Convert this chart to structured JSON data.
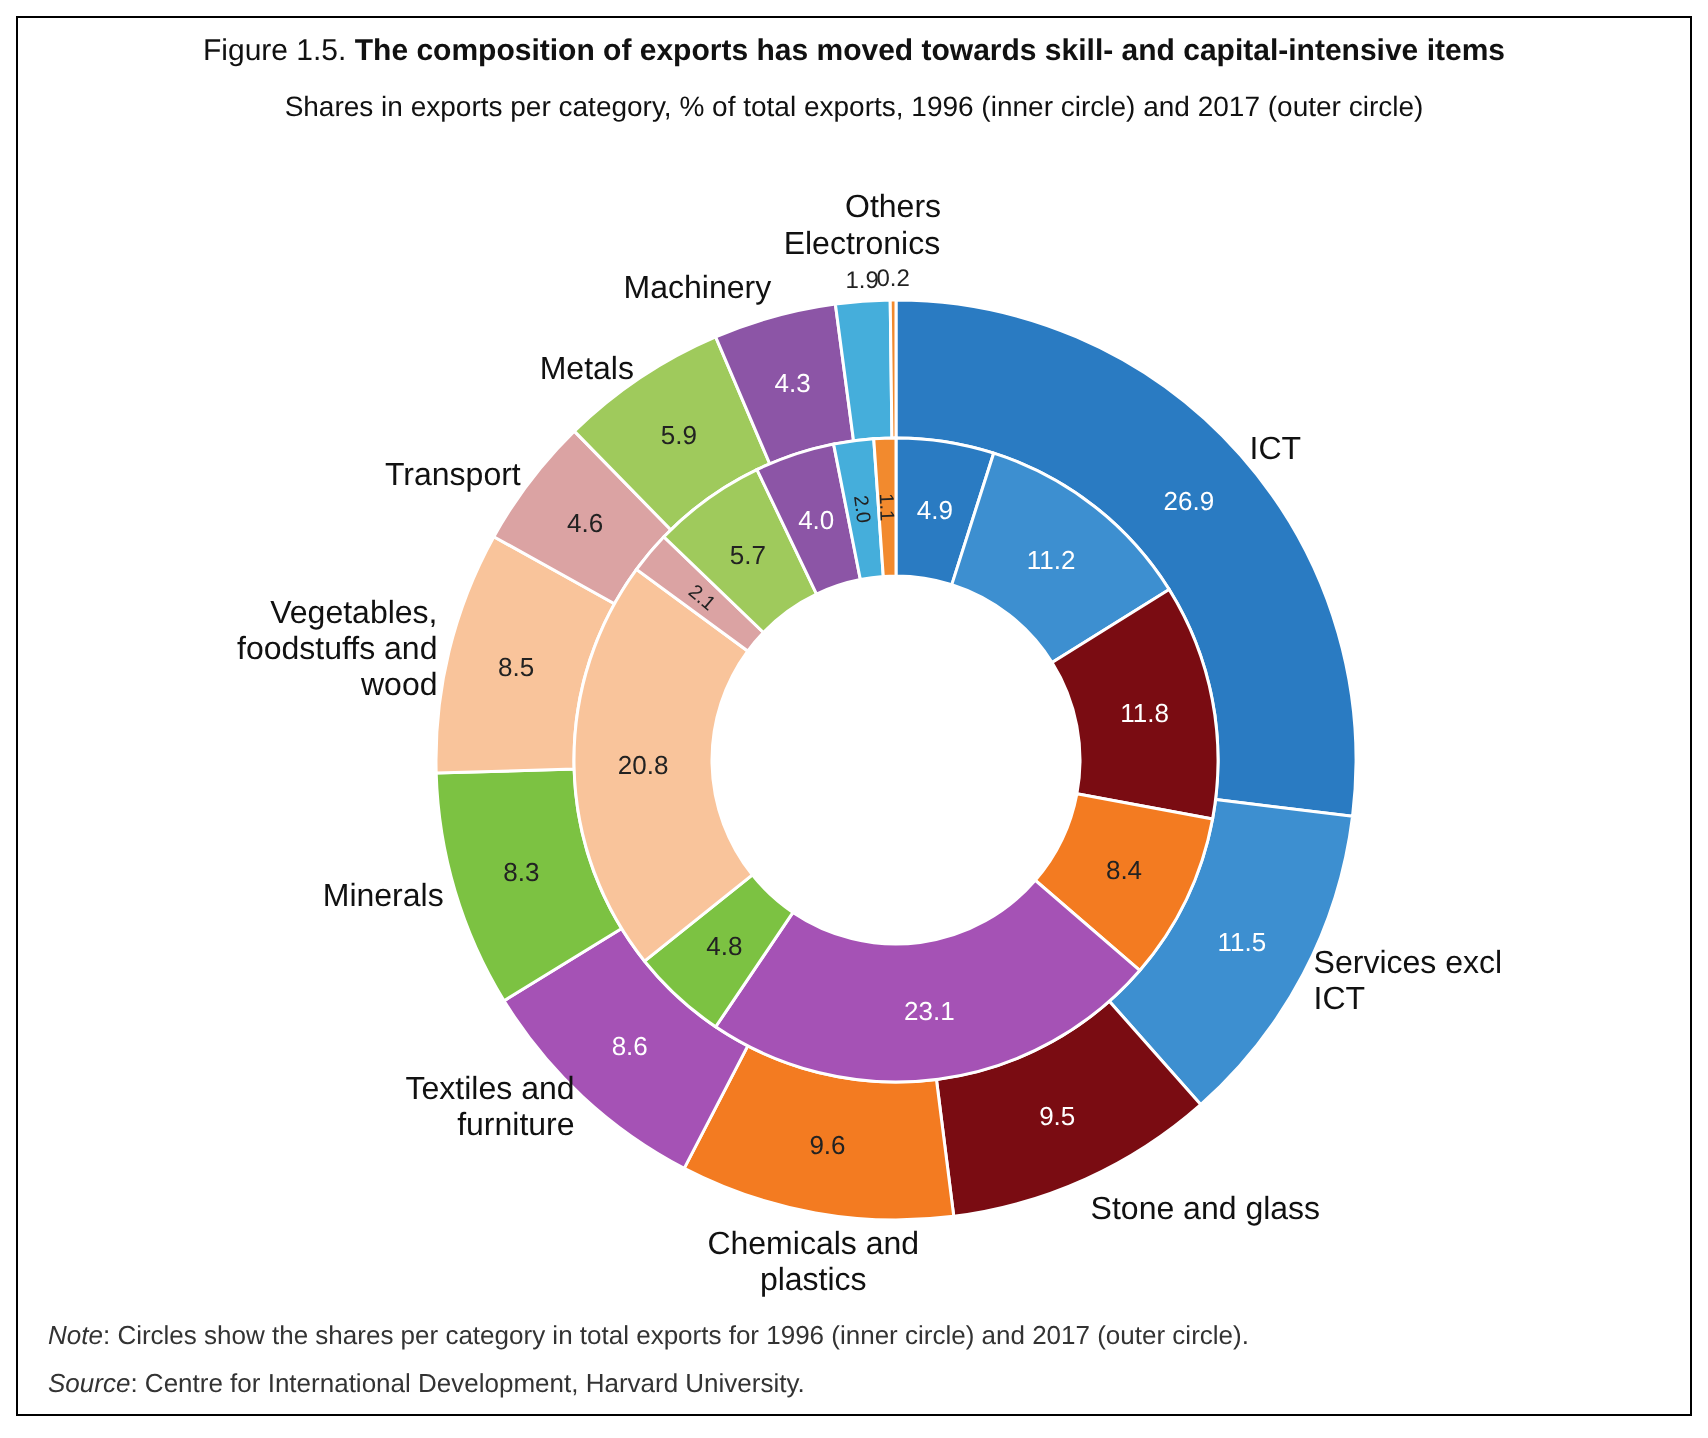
{
  "chart_data": {
    "type": "donut",
    "title": "Figure 1.5. The composition of exports has moved towards skill- and capital-intensive items",
    "subtitle": "Shares in exports per category, % of total exports, 1996 (inner circle) and 2017 (outer circle)",
    "categories": [
      "ICT",
      "Services excl ICT",
      "Stone and glass",
      "Chemicals and plastics",
      "Textiles and furniture",
      "Minerals",
      "Vegetables, foodstuffs and wood",
      "Transport",
      "Metals",
      "Machinery",
      "Electronics",
      "Others"
    ],
    "colors": [
      "#2a7bc2",
      "#3d8fd0",
      "#7a0c12",
      "#f37b21",
      "#a552b5",
      "#7cc242",
      "#f9c49b",
      "#dba3a3",
      "#9fca5c",
      "#8c55a6",
      "#45aedb",
      "#f28a2e"
    ],
    "series": [
      {
        "values": [
          26.9,
          11.5,
          9.5,
          9.6,
          8.6,
          8.3,
          8.5,
          4.6,
          5.9,
          4.3,
          1.9,
          0.2
        ],
        "value_labels": [
          "26.9",
          "11.5",
          "9.5",
          "9.6",
          "8.6",
          "8.3",
          "8.5",
          "4.6",
          "5.9",
          "4.3",
          "1.9",
          "0.2"
        ]
      },
      {
        "values": [
          4.9,
          11.2,
          11.8,
          8.4,
          23.1,
          4.8,
          20.8,
          2.1,
          5.7,
          4.0,
          2.0,
          1.1
        ],
        "value_labels": [
          "4.9",
          "11.2",
          "11.8",
          "8.4",
          "23.1",
          "4.8",
          "20.8",
          "2.1",
          "5.7",
          "4.0",
          "2.0",
          "1.1"
        ]
      }
    ],
    "annotations": [
      "Note: Circles show the shares per category in total exports for 1996 (inner circle) and 2017 (outer circle).",
      "Source: Centre for International Development, Harvard University."
    ]
  }
}
